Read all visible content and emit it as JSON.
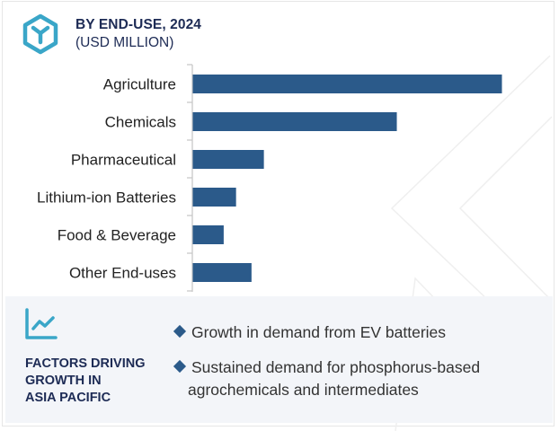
{
  "header": {
    "icon": "cube-icon",
    "title": "BY END-USE, 2024",
    "subtitle": "(USD MILLION)"
  },
  "chart_data": {
    "type": "bar",
    "orientation": "horizontal",
    "title": "BY END-USE, 2024",
    "subtitle": "(USD MILLION)",
    "xlabel": "",
    "ylabel": "",
    "categories": [
      "Agriculture",
      "Chemicals",
      "Pharmaceutical",
      "Lithium-ion Batteries",
      "Food & Beverage",
      "Other End-uses"
    ],
    "values": [
      100,
      66,
      23,
      14,
      10,
      19
    ],
    "value_note": "relative bar lengths (Agriculture = 100); no value labels shown",
    "xlim": [
      0,
      100
    ],
    "grid": false,
    "legend": "none",
    "bar_color": "#2b5a8a"
  },
  "factors": {
    "icon": "trend-chart-icon",
    "title_lines": [
      "FACTORS DRIVING",
      "GROWTH IN",
      "ASIA PACIFIC"
    ],
    "items": [
      {
        "lines": [
          "Growth in demand from EV batteries"
        ]
      },
      {
        "lines": [
          "Sustained demand for phosphorus-based",
          "agrochemicals and intermediates"
        ]
      }
    ]
  },
  "colors": {
    "accent": "#3aa6c8",
    "title": "#1d2b55",
    "bar": "#2b5a8a",
    "panel_bg": "#f3f5f9"
  }
}
